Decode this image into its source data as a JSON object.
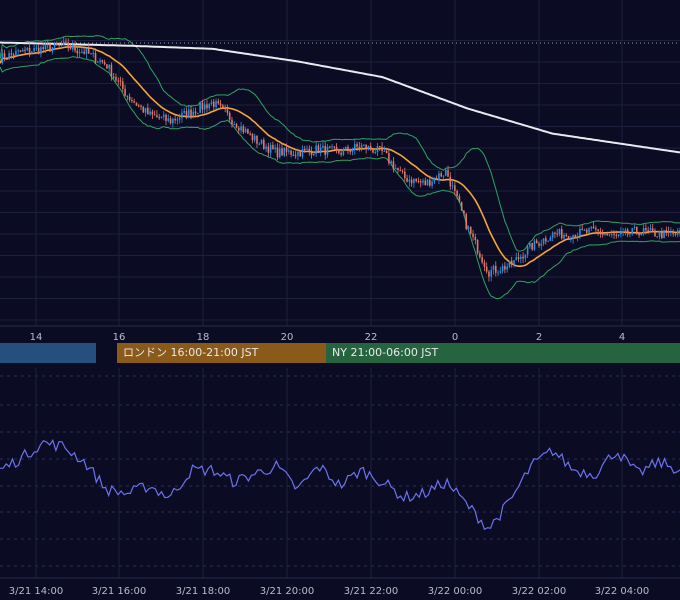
{
  "chart_data": [
    {
      "type": "candlestick",
      "title": "",
      "x_ticks": [
        "14",
        "16",
        "18",
        "20",
        "22",
        "0",
        "2",
        "4"
      ],
      "bands": {
        "middle_color": "#f5a33c",
        "bollinger_color": "#2fa35f",
        "long_ma_color": "#e9eaf0",
        "up_color": "#2d8fe0",
        "down_color": "#e07a6a"
      },
      "grid": true,
      "price_range": [
        0,
        100
      ],
      "anchors": [
        {
          "t": 0,
          "v": 84
        },
        {
          "t": 1,
          "v": 86
        },
        {
          "t": 2,
          "v": 87
        },
        {
          "t": 3,
          "v": 88
        },
        {
          "t": 4,
          "v": 86
        },
        {
          "t": 5,
          "v": 82
        },
        {
          "t": 6,
          "v": 72
        },
        {
          "t": 7,
          "v": 66
        },
        {
          "t": 8,
          "v": 64
        },
        {
          "t": 9,
          "v": 67
        },
        {
          "t": 10,
          "v": 70
        },
        {
          "t": 11,
          "v": 64
        },
        {
          "t": 12,
          "v": 58
        },
        {
          "t": 13,
          "v": 54
        },
        {
          "t": 14,
          "v": 54
        },
        {
          "t": 15,
          "v": 55
        },
        {
          "t": 16,
          "v": 54
        },
        {
          "t": 17,
          "v": 56
        },
        {
          "t": 18,
          "v": 54
        },
        {
          "t": 19,
          "v": 46
        },
        {
          "t": 20,
          "v": 44
        },
        {
          "t": 21,
          "v": 48
        },
        {
          "t": 22,
          "v": 30
        },
        {
          "t": 23,
          "v": 16
        },
        {
          "t": 24,
          "v": 18
        },
        {
          "t": 25,
          "v": 24
        },
        {
          "t": 26,
          "v": 28
        },
        {
          "t": 27,
          "v": 28
        },
        {
          "t": 28,
          "v": 29
        },
        {
          "t": 29,
          "v": 27
        },
        {
          "t": 30,
          "v": 29
        },
        {
          "t": 31,
          "v": 28
        },
        {
          "t": 32,
          "v": 28
        }
      ],
      "long_ma": [
        {
          "t": 0,
          "v": 89
        },
        {
          "t": 6,
          "v": 88
        },
        {
          "t": 10,
          "v": 87
        },
        {
          "t": 14,
          "v": 83
        },
        {
          "t": 18,
          "v": 78
        },
        {
          "t": 22,
          "v": 68
        },
        {
          "t": 26,
          "v": 60
        },
        {
          "t": 32,
          "v": 54
        }
      ]
    },
    {
      "type": "line",
      "title": "",
      "x_ticks": [
        "3/21 14:00",
        "3/21 16:00",
        "3/21 18:00",
        "3/21 20:00",
        "3/21 22:00",
        "3/22 00:00",
        "3/22 02:00",
        "3/22 04:00"
      ],
      "color": "#6d72ee",
      "y_range": [
        0,
        100
      ],
      "anchors": [
        {
          "t": 0,
          "v": 50
        },
        {
          "t": 1,
          "v": 56
        },
        {
          "t": 2,
          "v": 64
        },
        {
          "t": 3,
          "v": 62
        },
        {
          "t": 4,
          "v": 54
        },
        {
          "t": 5,
          "v": 40
        },
        {
          "t": 6,
          "v": 38
        },
        {
          "t": 7,
          "v": 42
        },
        {
          "t": 8,
          "v": 36
        },
        {
          "t": 9,
          "v": 50
        },
        {
          "t": 10,
          "v": 50
        },
        {
          "t": 11,
          "v": 44
        },
        {
          "t": 12,
          "v": 48
        },
        {
          "t": 13,
          "v": 52
        },
        {
          "t": 14,
          "v": 40
        },
        {
          "t": 15,
          "v": 52
        },
        {
          "t": 16,
          "v": 42
        },
        {
          "t": 17,
          "v": 50
        },
        {
          "t": 18,
          "v": 44
        },
        {
          "t": 19,
          "v": 36
        },
        {
          "t": 20,
          "v": 38
        },
        {
          "t": 21,
          "v": 44
        },
        {
          "t": 22,
          "v": 32
        },
        {
          "t": 23,
          "v": 20
        },
        {
          "t": 24,
          "v": 34
        },
        {
          "t": 25,
          "v": 52
        },
        {
          "t": 26,
          "v": 60
        },
        {
          "t": 27,
          "v": 50
        },
        {
          "t": 28,
          "v": 48
        },
        {
          "t": 29,
          "v": 60
        },
        {
          "t": 30,
          "v": 48
        },
        {
          "t": 31,
          "v": 54
        },
        {
          "t": 32,
          "v": 50
        }
      ]
    }
  ],
  "sessions": {
    "tokyo": "",
    "london": "ロンドン 16:00-21:00 JST",
    "ny": "NY 21:00-06:00 JST"
  }
}
